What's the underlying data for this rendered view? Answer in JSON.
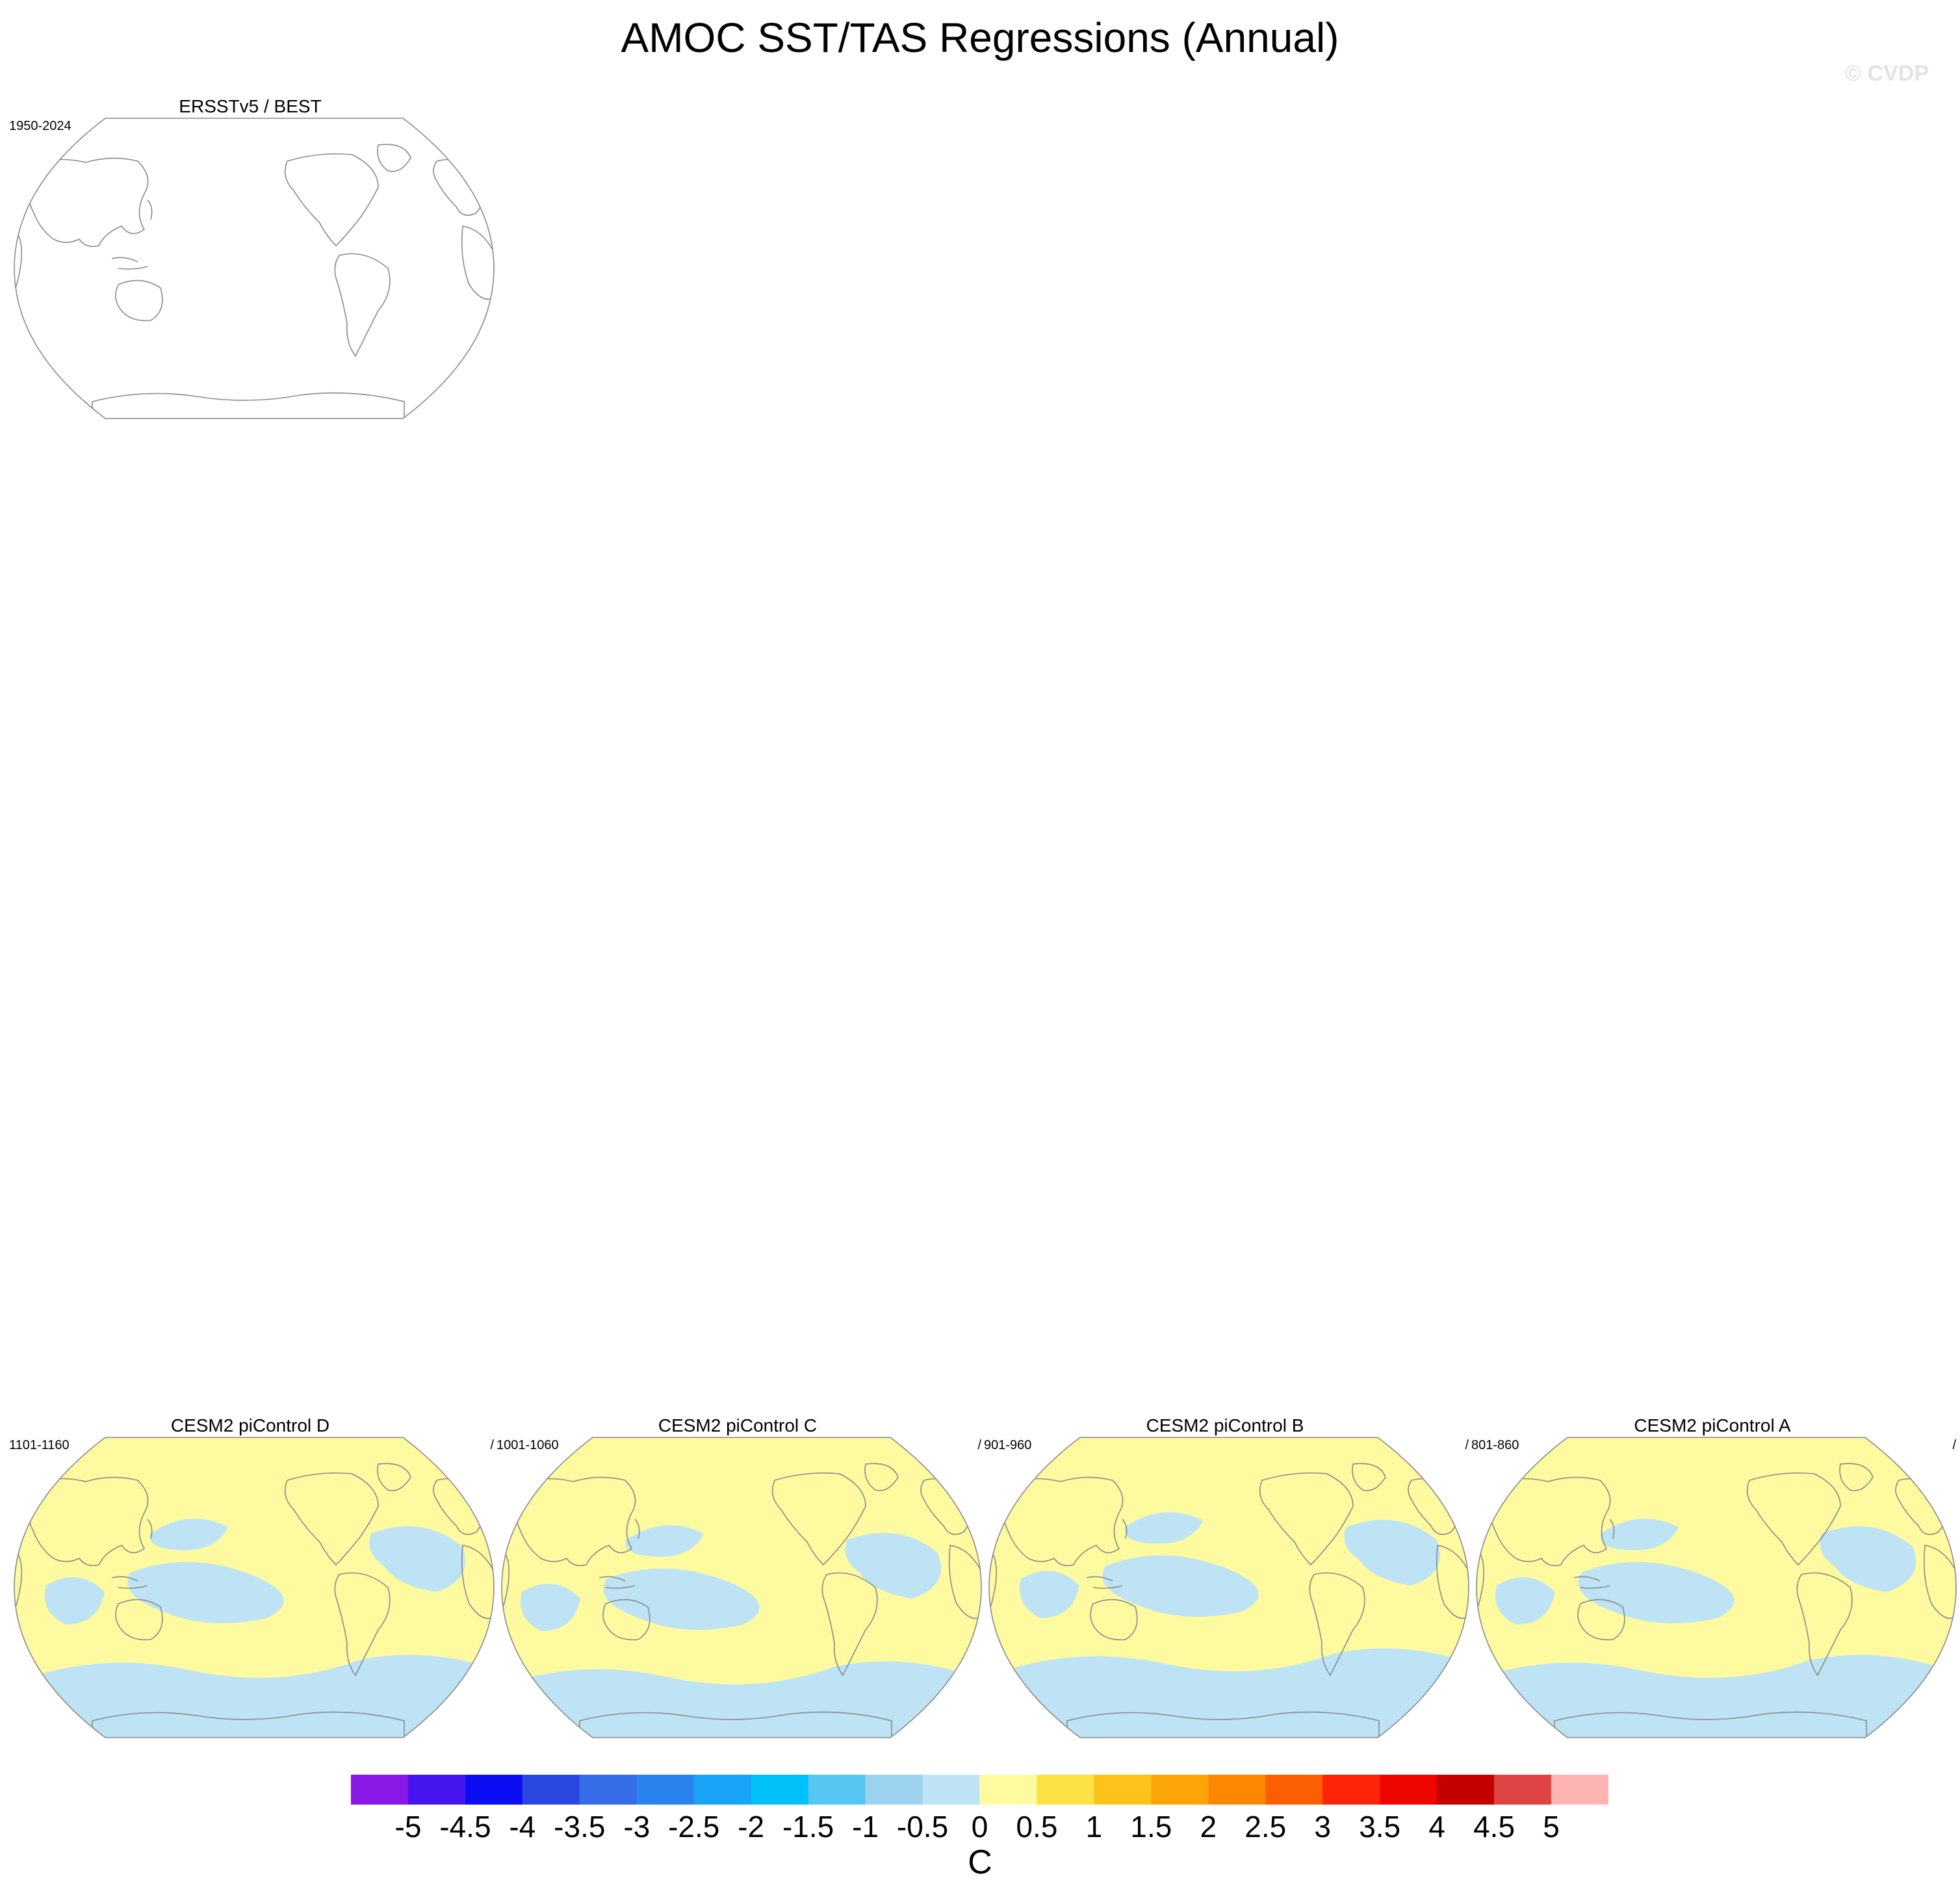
{
  "title": "AMOC SST/TAS Regressions (Annual)",
  "watermark": "© CVDP",
  "panels": [
    {
      "title": "ERSSTv5 / BEST",
      "years": "1950-2024",
      "slash": "",
      "filled": false
    },
    {
      "title": "CESM2 piControl D",
      "years": "1101-1160",
      "slash": "/",
      "filled": true
    },
    {
      "title": "CESM2 piControl C",
      "years": "1001-1060",
      "slash": "/",
      "filled": true
    },
    {
      "title": "CESM2 piControl B",
      "years": "901-960",
      "slash": "/",
      "filled": true
    },
    {
      "title": "CESM2 piControl A",
      "years": "801-860",
      "slash": "/",
      "filled": true
    }
  ],
  "colorbar": {
    "units": "C",
    "ticks": [
      "-5",
      "-4.5",
      "-4",
      "-3.5",
      "-3",
      "-2.5",
      "-2",
      "-1.5",
      "-1",
      "-0.5",
      "0",
      "0.5",
      "1",
      "1.5",
      "2",
      "2.5",
      "3",
      "3.5",
      "4",
      "4.5",
      "5"
    ],
    "colors": [
      "#8a19e8",
      "#4616f0",
      "#0b0ef2",
      "#2a48e0",
      "#356ee8",
      "#2a84f0",
      "#18a4f8",
      "#00c0fa",
      "#56c6f2",
      "#9dd3ee",
      "#bde3f4",
      "#fefaa0",
      "#fde245",
      "#fcc41a",
      "#fda507",
      "#fd8700",
      "#fc5f00",
      "#fd2408",
      "#f00400",
      "#c50000",
      "#de4444",
      "#ffb4b4"
    ]
  }
}
